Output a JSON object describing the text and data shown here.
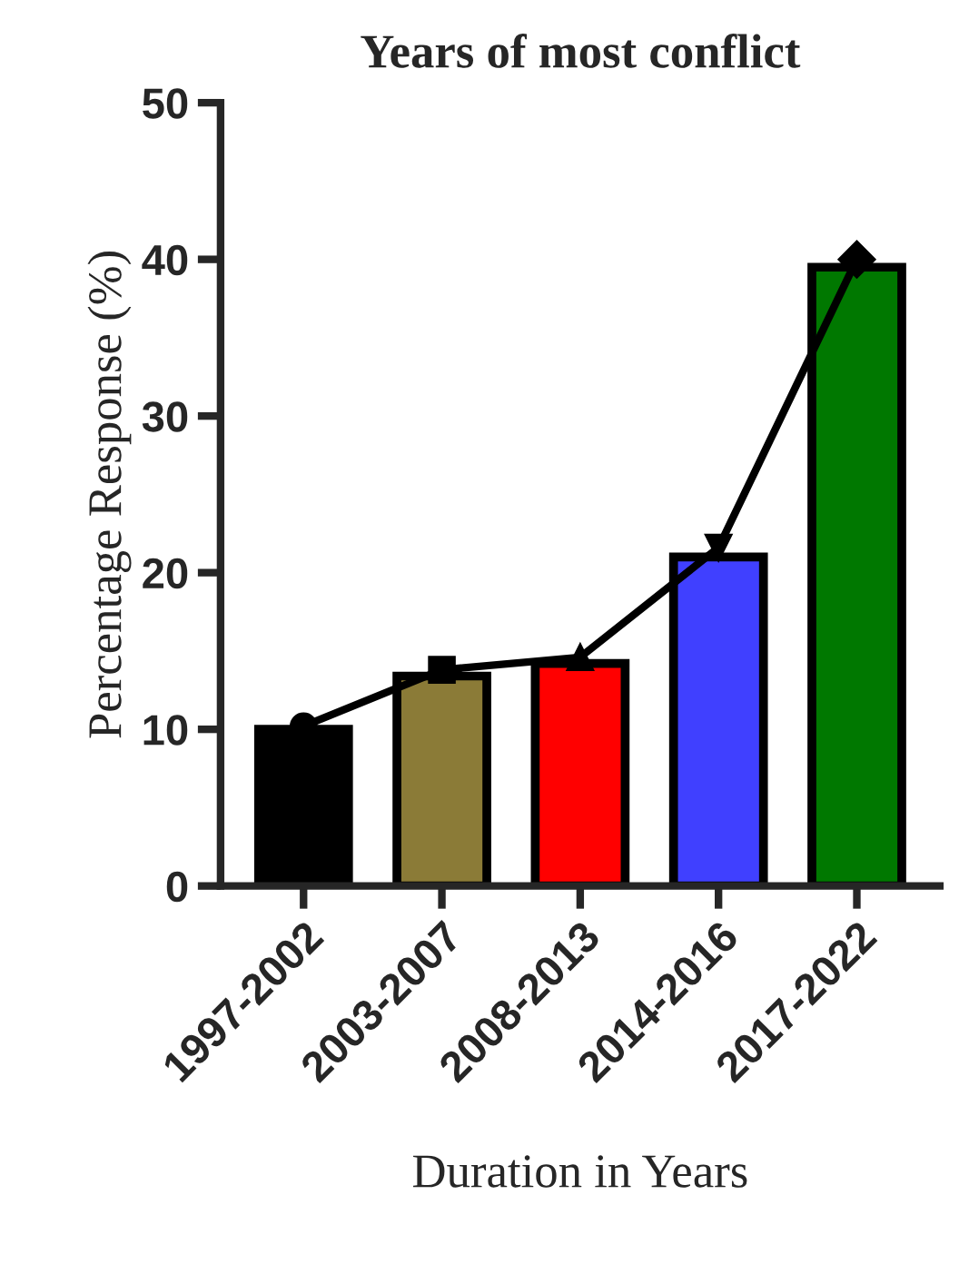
{
  "chart_data": {
    "type": "bar",
    "title": "Years of most conflict",
    "xlabel": "Duration in Years",
    "ylabel": "Percentage Response (%)",
    "categories": [
      "1997-2002",
      "2003-2007",
      "2008-2013",
      "2014-2016",
      "2017-2022"
    ],
    "series": [
      {
        "colors": [
          "#000000",
          "#8b7b37",
          "#ff0000",
          "#4040ff",
          "#007800"
        ],
        "values": [
          10,
          13.4,
          14.2,
          21,
          39.5
        ]
      },
      {
        "type": "line",
        "color": "#000000",
        "marker": [
          "circle",
          "square",
          "triangle",
          "triangle_down",
          "diamond"
        ],
        "values": [
          10.2,
          13.8,
          14.6,
          21.6,
          40
        ]
      }
    ],
    "ylim": [
      0,
      50
    ],
    "yticks": [
      0,
      10,
      20,
      30,
      40,
      50
    ],
    "grid": false,
    "legend": false
  }
}
